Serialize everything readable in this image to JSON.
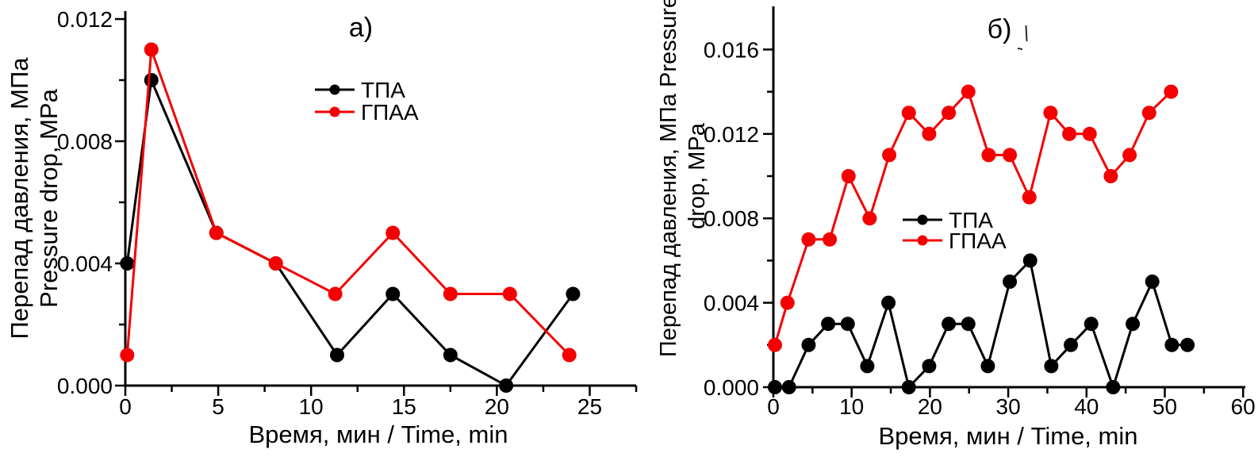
{
  "figure": {
    "background": "#ffffff",
    "series_colors": {
      "tpa": "#000000",
      "gpaa": "#f40000"
    }
  },
  "chart_data": [
    {
      "id": "a",
      "type": "line",
      "panel_label": "а)",
      "xlabel": "Время, мин / Time, min",
      "ylabel_lines": [
        "Перепад давления, МПа",
        "Pressure drop, MPa"
      ],
      "xlim": [
        0,
        27.5
      ],
      "ylim": [
        0,
        0.0123
      ],
      "grid": false,
      "legend_position": "upper-center-inside",
      "x_ticks": {
        "values": [
          0,
          5,
          10,
          15,
          20,
          25
        ],
        "labels": [
          "0",
          "5",
          "10",
          "15",
          "20",
          "25"
        ],
        "minor": [
          2.5,
          7.5,
          12.5,
          17.5,
          22.5,
          27.5
        ]
      },
      "y_ticks": {
        "values": [
          0,
          0.004,
          0.008,
          0.012
        ],
        "labels": [
          "0.000",
          "0.004",
          "0.008",
          "0.012"
        ],
        "minor": [
          0.002,
          0.006,
          0.01
        ]
      },
      "series": [
        {
          "name": "ТПА",
          "slug": "tpa",
          "color": "#000000",
          "x": [
            0.1,
            1.4,
            4.9,
            8.1,
            11.4,
            14.4,
            17.5,
            20.5,
            24.1
          ],
          "y": [
            0.004,
            0.01,
            0.005,
            0.004,
            0.001,
            0.003,
            0.001,
            0,
            0.003
          ]
        },
        {
          "name": "ГПАА",
          "slug": "gpaa",
          "color": "#f40000",
          "x": [
            0.1,
            1.4,
            4.9,
            8.1,
            11.3,
            14.4,
            17.5,
            20.7,
            23.9
          ],
          "y": [
            0.001,
            0.011,
            0.005,
            0.004,
            0.003,
            0.005,
            0.003,
            0.003,
            0.001
          ]
        }
      ]
    },
    {
      "id": "b",
      "type": "line",
      "panel_label": "б)",
      "xlabel": "Время, мин / Time, min",
      "ylabel_lines": [
        "Перепад давления, МПа Pressure",
        "drop, MPa"
      ],
      "xlim": [
        0,
        60
      ],
      "ylim": [
        0,
        0.018
      ],
      "grid": false,
      "legend_position": "middle-right-inside",
      "x_ticks": {
        "values": [
          0,
          10,
          20,
          30,
          40,
          50,
          60
        ],
        "labels": [
          "0",
          "10",
          "20",
          "30",
          "40",
          "50",
          "60"
        ],
        "minor": [
          5,
          15,
          25,
          35,
          45,
          55
        ]
      },
      "y_ticks": {
        "values": [
          0,
          0.004,
          0.008,
          0.012,
          0.016
        ],
        "labels": [
          "0.000",
          "0.004",
          "0.008",
          "0.012",
          "0.016"
        ],
        "minor": [
          0.002,
          0.006,
          0.01,
          0.014
        ]
      },
      "series": [
        {
          "name": "ТПА",
          "slug": "tpa",
          "color": "#000000",
          "x": [
            0.2,
            2,
            4.5,
            7,
            9.5,
            12,
            14.7,
            17.3,
            19.9,
            22.4,
            24.9,
            27.4,
            30.2,
            32.8,
            35.5,
            38,
            40.6,
            43.4,
            45.9,
            48.4,
            50.9,
            52.9
          ],
          "y": [
            0,
            0,
            0.002,
            0.003,
            0.003,
            0.001,
            0.004,
            0,
            0.001,
            0.003,
            0.003,
            0.001,
            0.005,
            0.006,
            0.001,
            0.002,
            0.003,
            0,
            0.003,
            0.005,
            0.002,
            0.002
          ]
        },
        {
          "name": "ГПАА",
          "slug": "gpaa",
          "color": "#f40000",
          "x": [
            0.2,
            1.8,
            4.5,
            7.2,
            9.6,
            12.3,
            14.8,
            17.3,
            19.9,
            22.4,
            24.9,
            27.5,
            30.2,
            32.7,
            35.4,
            37.8,
            40.4,
            43.1,
            45.5,
            48,
            50.8
          ],
          "y": [
            0.002,
            0.004,
            0.007,
            0.007,
            0.01,
            0.008,
            0.011,
            0.013,
            0.012,
            0.013,
            0.014,
            0.011,
            0.011,
            0.009,
            0.013,
            0.012,
            0.012,
            0.01,
            0.011,
            0.013,
            0.014
          ]
        }
      ]
    }
  ]
}
